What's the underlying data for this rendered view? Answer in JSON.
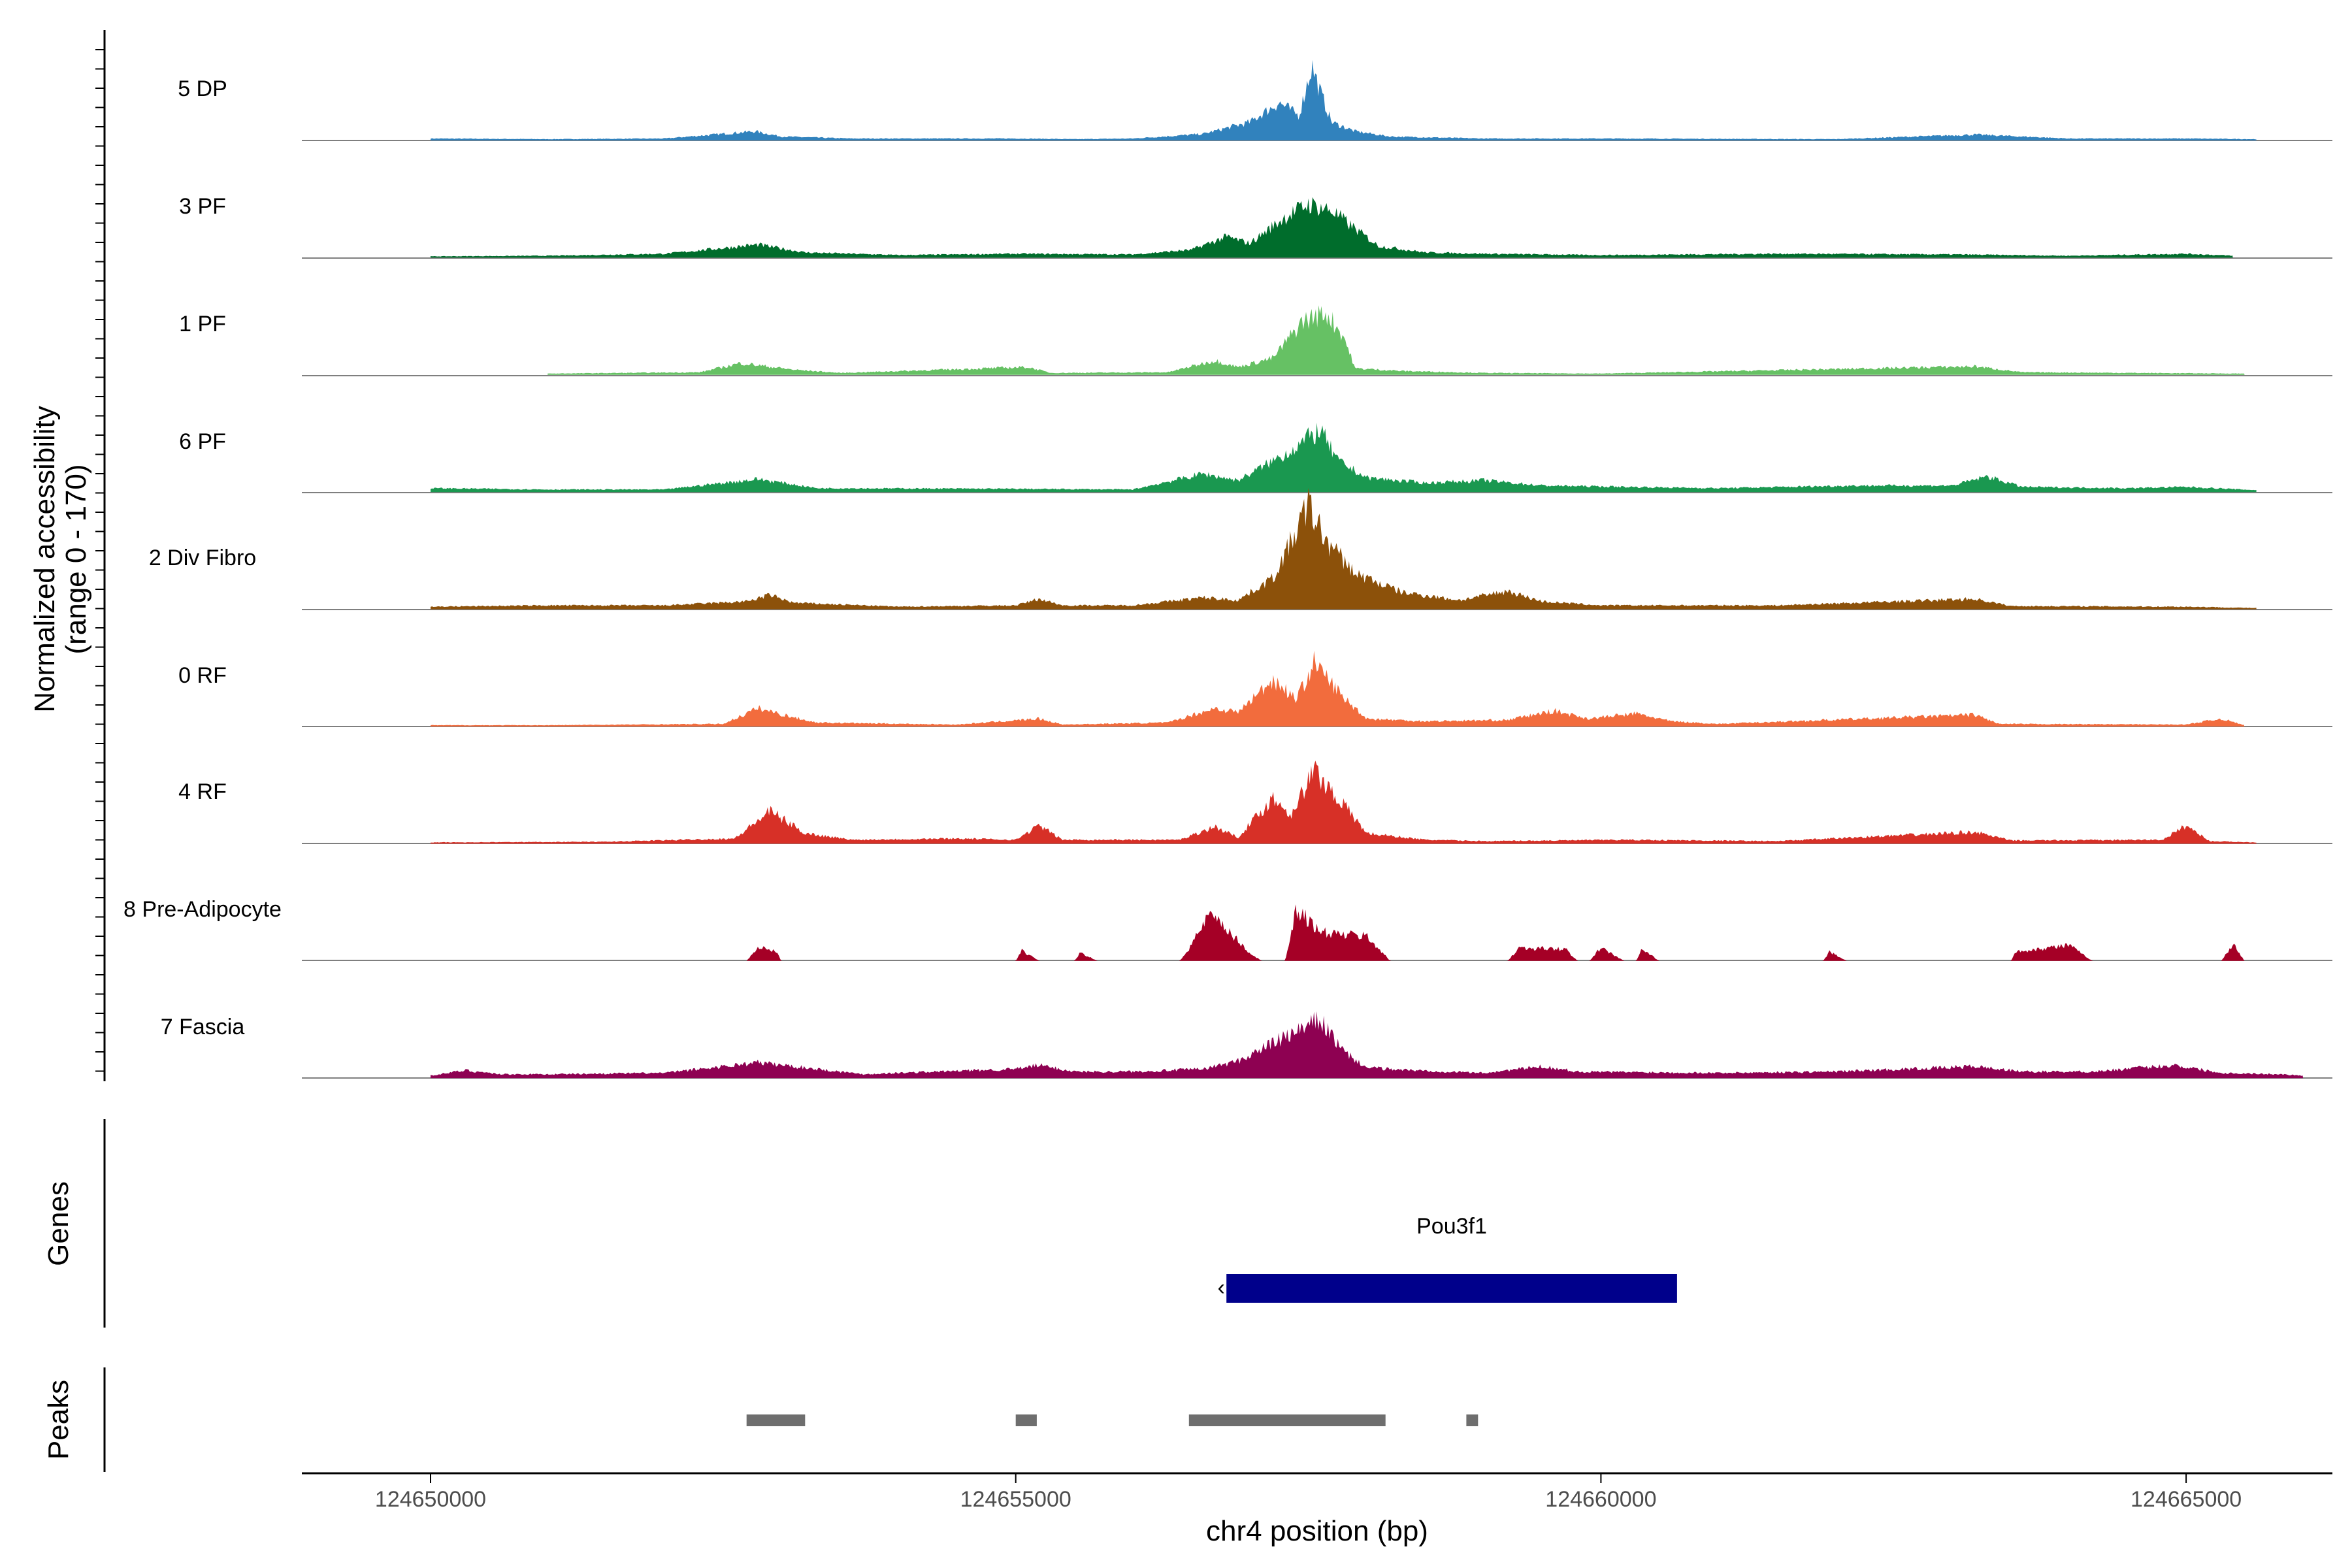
{
  "chart_data": {
    "type": "area",
    "title": "",
    "xlabel": "chr4 position (bp)",
    "ylabel_line1": "Normalized accessibility",
    "ylabel_line2": "(range 0 - 170)",
    "y_range": [
      0,
      170
    ],
    "x_range": [
      124648900,
      124666250
    ],
    "x_ticks": [
      124650000,
      124655000,
      124660000,
      124665000
    ],
    "x_tick_labels": [
      "124650000",
      "124655000",
      "124660000",
      "124665000"
    ],
    "tracks": [
      {
        "name": "5 DP",
        "color": "#3182bd",
        "profile": [
          [
            124650000,
            3
          ],
          [
            124651000,
            2
          ],
          [
            124652000,
            3
          ],
          [
            124652770,
            14
          ],
          [
            124653000,
            6
          ],
          [
            124653600,
            3
          ],
          [
            124655000,
            3
          ],
          [
            124655500,
            2
          ],
          [
            124656000,
            3
          ],
          [
            124656600,
            10
          ],
          [
            124657000,
            28
          ],
          [
            124657250,
            58
          ],
          [
            124657420,
            38
          ],
          [
            124657530,
            115
          ],
          [
            124657600,
            75
          ],
          [
            124657700,
            28
          ],
          [
            124657900,
            14
          ],
          [
            124658200,
            6
          ],
          [
            124659000,
            3
          ],
          [
            124660000,
            3
          ],
          [
            124662000,
            2
          ],
          [
            124663200,
            9
          ],
          [
            124664000,
            3
          ],
          [
            124665000,
            3
          ],
          [
            124665600,
            2
          ]
        ]
      },
      {
        "name": "3 PF",
        "color": "#006d2c",
        "profile": [
          [
            124650000,
            2
          ],
          [
            124651000,
            3
          ],
          [
            124652000,
            6
          ],
          [
            124652800,
            20
          ],
          [
            124653200,
            8
          ],
          [
            124654000,
            4
          ],
          [
            124655000,
            6
          ],
          [
            124656000,
            5
          ],
          [
            124656500,
            12
          ],
          [
            124656800,
            32
          ],
          [
            124657000,
            22
          ],
          [
            124657300,
            62
          ],
          [
            124657500,
            82
          ],
          [
            124657700,
            72
          ],
          [
            124657900,
            44
          ],
          [
            124658100,
            18
          ],
          [
            124658500,
            8
          ],
          [
            124659000,
            6
          ],
          [
            124660000,
            4
          ],
          [
            124661500,
            6
          ],
          [
            124663000,
            5
          ],
          [
            124664000,
            3
          ],
          [
            124665000,
            6
          ],
          [
            124665400,
            3
          ]
        ]
      },
      {
        "name": "1 PF",
        "color": "#66c164",
        "profile": [
          [
            124651000,
            2
          ],
          [
            124652300,
            4
          ],
          [
            124652650,
            18
          ],
          [
            124653100,
            8
          ],
          [
            124653500,
            3
          ],
          [
            124655100,
            12
          ],
          [
            124655300,
            3
          ],
          [
            124656300,
            4
          ],
          [
            124656700,
            22
          ],
          [
            124656900,
            12
          ],
          [
            124657200,
            26
          ],
          [
            124657450,
            82
          ],
          [
            124657650,
            95
          ],
          [
            124657800,
            60
          ],
          [
            124657900,
            10
          ],
          [
            124658300,
            6
          ],
          [
            124659000,
            3
          ],
          [
            124660000,
            2
          ],
          [
            124663200,
            13
          ],
          [
            124663600,
            4
          ],
          [
            124665500,
            2
          ]
        ]
      },
      {
        "name": "6 PF",
        "color": "#1a9850",
        "profile": [
          [
            124650000,
            6
          ],
          [
            124651000,
            4
          ],
          [
            124652000,
            4
          ],
          [
            124652800,
            20
          ],
          [
            124653300,
            6
          ],
          [
            124655000,
            5
          ],
          [
            124656000,
            4
          ],
          [
            124656600,
            28
          ],
          [
            124656900,
            18
          ],
          [
            124657300,
            58
          ],
          [
            124657600,
            95
          ],
          [
            124657750,
            48
          ],
          [
            124658000,
            22
          ],
          [
            124658500,
            14
          ],
          [
            124659000,
            18
          ],
          [
            124659500,
            10
          ],
          [
            124660200,
            8
          ],
          [
            124661000,
            6
          ],
          [
            124662200,
            10
          ],
          [
            124663000,
            10
          ],
          [
            124663300,
            24
          ],
          [
            124663600,
            8
          ],
          [
            124664500,
            6
          ],
          [
            124665000,
            8
          ],
          [
            124665600,
            3
          ]
        ]
      },
      {
        "name": "2 Div Fibro",
        "color": "#8c510a",
        "profile": [
          [
            124650000,
            4
          ],
          [
            124651000,
            6
          ],
          [
            124652000,
            6
          ],
          [
            124652700,
            12
          ],
          [
            124652900,
            22
          ],
          [
            124653100,
            10
          ],
          [
            124654000,
            4
          ],
          [
            124655000,
            6
          ],
          [
            124655200,
            16
          ],
          [
            124655400,
            6
          ],
          [
            124656000,
            6
          ],
          [
            124656600,
            18
          ],
          [
            124656900,
            14
          ],
          [
            124657200,
            48
          ],
          [
            124657400,
            120
          ],
          [
            124657500,
            160
          ],
          [
            124657650,
            105
          ],
          [
            124657900,
            55
          ],
          [
            124658300,
            26
          ],
          [
            124658800,
            14
          ],
          [
            124659200,
            28
          ],
          [
            124659500,
            12
          ],
          [
            124660000,
            6
          ],
          [
            124661500,
            6
          ],
          [
            124663200,
            16
          ],
          [
            124663500,
            5
          ],
          [
            124665000,
            4
          ],
          [
            124665600,
            2
          ]
        ]
      },
      {
        "name": "0 RF",
        "color": "#f26c3d",
        "profile": [
          [
            124650000,
            2
          ],
          [
            124651000,
            2
          ],
          [
            124652500,
            4
          ],
          [
            124652800,
            28
          ],
          [
            124653100,
            14
          ],
          [
            124653300,
            6
          ],
          [
            124654500,
            3
          ],
          [
            124655200,
            12
          ],
          [
            124655400,
            3
          ],
          [
            124656300,
            6
          ],
          [
            124656700,
            28
          ],
          [
            124656900,
            22
          ],
          [
            124657200,
            72
          ],
          [
            124657400,
            42
          ],
          [
            124657550,
            98
          ],
          [
            124657800,
            44
          ],
          [
            124658000,
            12
          ],
          [
            124658500,
            8
          ],
          [
            124659200,
            10
          ],
          [
            124659600,
            24
          ],
          [
            124659900,
            12
          ],
          [
            124660300,
            20
          ],
          [
            124660600,
            8
          ],
          [
            124661000,
            4
          ],
          [
            124663200,
            18
          ],
          [
            124663400,
            4
          ],
          [
            124665000,
            3
          ],
          [
            124665300,
            12
          ],
          [
            124665500,
            2
          ]
        ]
      },
      {
        "name": "4 RF",
        "color": "#d73027",
        "profile": [
          [
            124650000,
            2
          ],
          [
            124651500,
            3
          ],
          [
            124652600,
            8
          ],
          [
            124652900,
            50
          ],
          [
            124653200,
            16
          ],
          [
            124653600,
            6
          ],
          [
            124654500,
            8
          ],
          [
            124655000,
            6
          ],
          [
            124655200,
            28
          ],
          [
            124655400,
            6
          ],
          [
            124656400,
            6
          ],
          [
            124656700,
            26
          ],
          [
            124656900,
            10
          ],
          [
            124657200,
            70
          ],
          [
            124657350,
            45
          ],
          [
            124657550,
            112
          ],
          [
            124657800,
            60
          ],
          [
            124658000,
            16
          ],
          [
            124658500,
            6
          ],
          [
            124659000,
            4
          ],
          [
            124660200,
            6
          ],
          [
            124661500,
            4
          ],
          [
            124663200,
            18
          ],
          [
            124663500,
            5
          ],
          [
            124664800,
            6
          ],
          [
            124665000,
            28
          ],
          [
            124665200,
            4
          ],
          [
            124665600,
            2
          ]
        ]
      },
      {
        "name": "8 Pre-Adipocyte",
        "color": "#a50026",
        "profile": [
          [
            124652700,
            0
          ],
          [
            124652800,
            22
          ],
          [
            124652950,
            14
          ],
          [
            124653000,
            0
          ],
          [
            124655000,
            0
          ],
          [
            124655050,
            16
          ],
          [
            124655200,
            0
          ],
          [
            124655500,
            0
          ],
          [
            124655550,
            12
          ],
          [
            124655700,
            0
          ],
          [
            124656400,
            0
          ],
          [
            124656500,
            24
          ],
          [
            124656650,
            70
          ],
          [
            124656800,
            48
          ],
          [
            124656900,
            30
          ],
          [
            124657000,
            12
          ],
          [
            124657100,
            0
          ],
          [
            124657300,
            0
          ],
          [
            124657400,
            80
          ],
          [
            124657600,
            44
          ],
          [
            124657800,
            40
          ],
          [
            124658000,
            38
          ],
          [
            124658200,
            0
          ],
          [
            124659200,
            0
          ],
          [
            124659300,
            20
          ],
          [
            124659700,
            18
          ],
          [
            124659800,
            0
          ],
          [
            124659900,
            0
          ],
          [
            124660000,
            20
          ],
          [
            124660200,
            0
          ],
          [
            124660300,
            0
          ],
          [
            124660350,
            18
          ],
          [
            124660500,
            0
          ],
          [
            124661900,
            0
          ],
          [
            124661950,
            14
          ],
          [
            124662100,
            0
          ],
          [
            124663500,
            0
          ],
          [
            124663550,
            14
          ],
          [
            124663800,
            20
          ],
          [
            124664000,
            24
          ],
          [
            124664200,
            0
          ],
          [
            124665300,
            0
          ],
          [
            124665400,
            26
          ],
          [
            124665500,
            0
          ]
        ]
      },
      {
        "name": "7 Fascia",
        "color": "#8e0152",
        "profile": [
          [
            124650000,
            4
          ],
          [
            124650300,
            12
          ],
          [
            124650600,
            6
          ],
          [
            124651000,
            6
          ],
          [
            124652000,
            8
          ],
          [
            124652800,
            24
          ],
          [
            124653300,
            14
          ],
          [
            124653700,
            6
          ],
          [
            124654000,
            8
          ],
          [
            124655000,
            14
          ],
          [
            124655200,
            20
          ],
          [
            124655500,
            10
          ],
          [
            124656000,
            10
          ],
          [
            124656600,
            14
          ],
          [
            124656900,
            26
          ],
          [
            124657200,
            54
          ],
          [
            124657400,
            70
          ],
          [
            124657600,
            90
          ],
          [
            124657800,
            40
          ],
          [
            124658000,
            16
          ],
          [
            124658400,
            12
          ],
          [
            124659000,
            8
          ],
          [
            124659500,
            18
          ],
          [
            124659800,
            10
          ],
          [
            124661000,
            8
          ],
          [
            124662000,
            10
          ],
          [
            124663200,
            18
          ],
          [
            124663600,
            10
          ],
          [
            124664200,
            10
          ],
          [
            124664900,
            20
          ],
          [
            124665300,
            8
          ],
          [
            124665800,
            6
          ],
          [
            124666000,
            4
          ]
        ]
      }
    ],
    "genes": [
      {
        "name": "Pou3f1",
        "start": 124656800,
        "end": 124660650,
        "strand": "-",
        "color": "#00008b"
      }
    ],
    "peaks": [
      [
        124652700,
        124653200
      ],
      [
        124655000,
        124655180
      ],
      [
        124656480,
        124658160
      ],
      [
        124658850,
        124658950
      ]
    ],
    "peak_color": "#6e6e6e",
    "side_panels": {
      "genes_label": "Genes",
      "peaks_label": "Peaks"
    }
  }
}
